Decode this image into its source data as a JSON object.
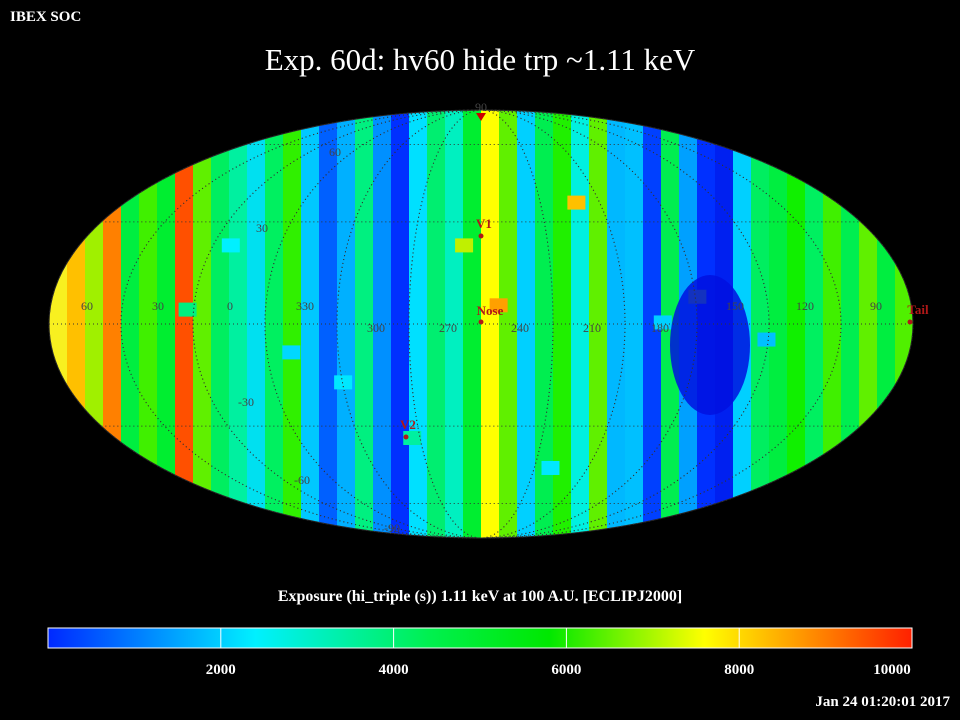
{
  "header": {
    "org": "IBEX SOC",
    "title": "Exp.   60d: hv60 hide trp ~1.11 keV"
  },
  "map": {
    "projection": "Mollweide",
    "coordinate_frame": "ECLIPJ2000",
    "longitude_labels": [
      "60",
      "30",
      "0",
      "330",
      "300",
      "270",
      "240",
      "210",
      "180",
      "150",
      "120",
      "90"
    ],
    "latitude_labels": [
      "90",
      "60",
      "30",
      "-30",
      "-60",
      "-90"
    ],
    "markers": [
      {
        "name": "V1"
      },
      {
        "name": "Nose"
      },
      {
        "name": "V2"
      },
      {
        "name": "Tail"
      }
    ],
    "legend_colors": [
      "#0028ff",
      "#00f0ff",
      "#00f050",
      "#00e800",
      "#ffff00",
      "#ff3000"
    ]
  },
  "colorbar": {
    "caption": "Exposure (hi_triple (s))  1.11 keV at 100 A.U. [ECLIPJ2000]",
    "min": 0,
    "max": 10000,
    "tick_labels": [
      "2000",
      "4000",
      "6000",
      "8000",
      "10000"
    ],
    "tick_values": [
      2000,
      4000,
      6000,
      8000,
      10000
    ]
  },
  "footer": {
    "timestamp": "Jan 24 01:20:01 2017"
  }
}
